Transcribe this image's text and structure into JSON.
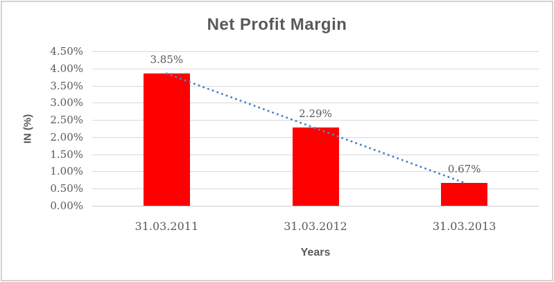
{
  "window": {
    "background_color": "#ffffff",
    "border_color": "#d2d2d2"
  },
  "chart_data": {
    "type": "bar",
    "title": "Net Profit Margin",
    "xlabel": "Years",
    "ylabel": "IN (%)",
    "categories": [
      "31.03.2011",
      "31.03.2012",
      "31.03.2013"
    ],
    "series": [
      {
        "name": "Net Profit Margin",
        "values": [
          3.85,
          2.29,
          0.67
        ]
      }
    ],
    "value_labels": [
      "3.85%",
      "2.29%",
      "0.67%"
    ],
    "y_ticks": [
      {
        "label": "4.50%",
        "value": 4.5
      },
      {
        "label": "4.00%",
        "value": 4.0
      },
      {
        "label": "3.50%",
        "value": 3.5
      },
      {
        "label": "3.00%",
        "value": 3.0
      },
      {
        "label": "2.50%",
        "value": 2.5
      },
      {
        "label": "2.00%",
        "value": 2.0
      },
      {
        "label": "1.50%",
        "value": 1.5
      },
      {
        "label": "1.00%",
        "value": 1.0
      },
      {
        "label": "0.50%",
        "value": 0.5
      },
      {
        "label": "0.00%",
        "value": 0.0
      }
    ],
    "ylim": [
      0,
      4.5
    ],
    "grid": "horizontal",
    "legend": "none",
    "trendline": {
      "type": "linear",
      "style": "dotted",
      "from_value": 3.85,
      "to_value": 0.67
    },
    "colors": {
      "bar": "#ff0000",
      "trendline": "#4a86c8",
      "gridline": "#d9d9d9",
      "text": "#595959"
    }
  }
}
